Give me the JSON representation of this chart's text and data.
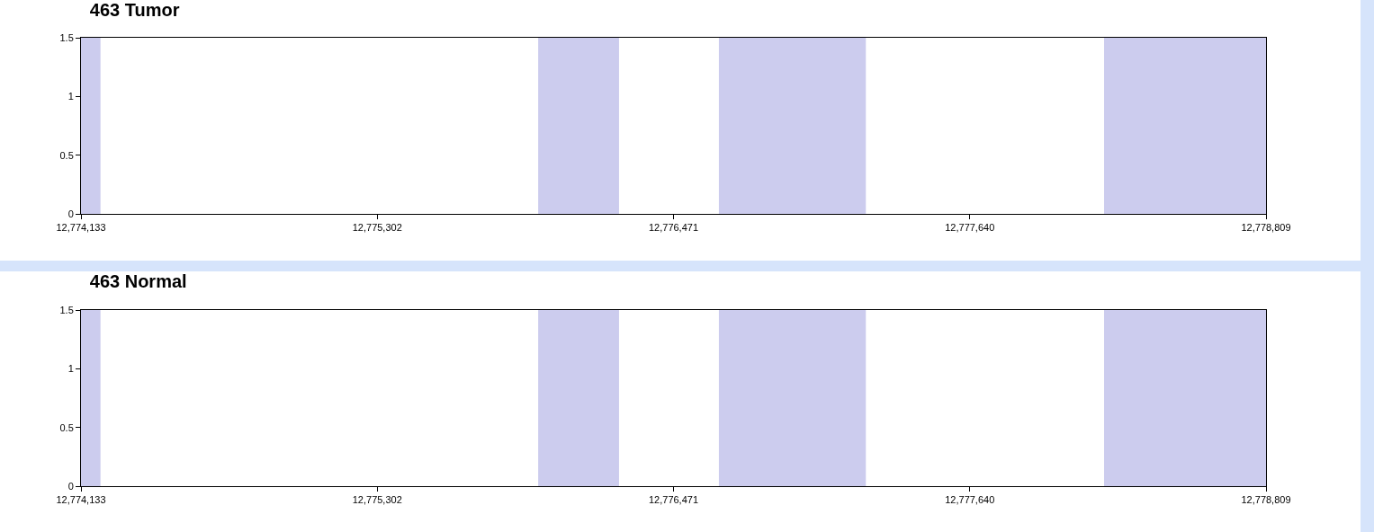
{
  "chart_data": [
    {
      "type": "line",
      "title": "463 Tumor",
      "xlim": [
        12774133,
        12778809
      ],
      "xticks": [
        {
          "value": 12774133,
          "label": "12,774,133"
        },
        {
          "value": 12775302,
          "label": "12,775,302"
        },
        {
          "value": 12776471,
          "label": "12,776,471"
        },
        {
          "value": 12777640,
          "label": "12,777,640"
        },
        {
          "value": 12778809,
          "label": "12,778,809"
        }
      ],
      "ylim": [
        0,
        1.5
      ],
      "yticks": [
        0,
        0.5,
        1,
        1.5
      ],
      "bands": [
        {
          "axis": "x",
          "from": 12774133,
          "to": 12774210,
          "color": "#ccccee"
        },
        {
          "axis": "x",
          "from": 12775937,
          "to": 12776256,
          "color": "#ccccee"
        },
        {
          "axis": "x",
          "from": 12776650,
          "to": 12777230,
          "color": "#ccccee"
        },
        {
          "axis": "x",
          "from": 12778170,
          "to": 12778809,
          "color": "#ccccee"
        }
      ]
    },
    {
      "type": "line",
      "title": "463 Normal",
      "xlim": [
        12774133,
        12778809
      ],
      "xticks": [
        {
          "value": 12774133,
          "label": "12,774,133"
        },
        {
          "value": 12775302,
          "label": "12,775,302"
        },
        {
          "value": 12776471,
          "label": "12,776,471"
        },
        {
          "value": 12777640,
          "label": "12,777,640"
        },
        {
          "value": 12778809,
          "label": "12,778,809"
        }
      ],
      "ylim": [
        0,
        1.5
      ],
      "yticks": [
        0,
        0.5,
        1,
        1.5
      ],
      "bands": [
        {
          "axis": "x",
          "from": 12774133,
          "to": 12774210,
          "color": "#ccccee"
        },
        {
          "axis": "x",
          "from": 12775937,
          "to": 12776256,
          "color": "#ccccee"
        },
        {
          "axis": "x",
          "from": 12776650,
          "to": 12777230,
          "color": "#ccccee"
        },
        {
          "axis": "x",
          "from": 12778170,
          "to": 12778809,
          "color": "#ccccee"
        }
      ]
    }
  ]
}
